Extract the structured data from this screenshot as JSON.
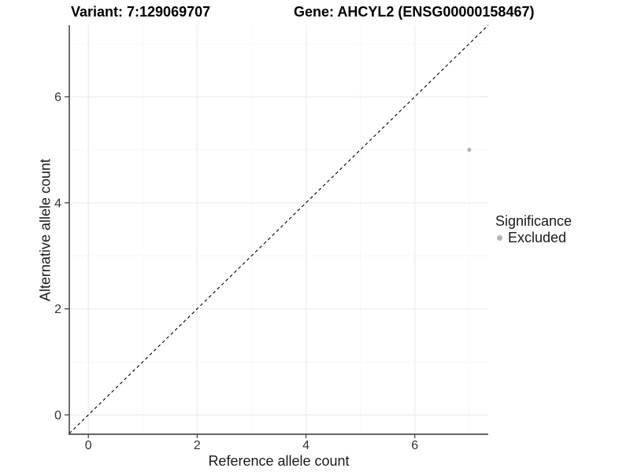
{
  "header": {
    "variant_title": "Variant: 7:129069707",
    "gene_title": "Gene: AHCYL2 (ENSG00000158467)"
  },
  "chart_data": {
    "type": "scatter",
    "xlabel": "Reference allele count",
    "ylabel": "Alternative allele count",
    "xlim": [
      -0.35,
      7.35
    ],
    "ylim": [
      -0.35,
      7.35
    ],
    "x_ticks": [
      0,
      2,
      4,
      6
    ],
    "y_ticks": [
      0,
      2,
      4,
      6
    ],
    "x_minor_ticks": [
      1,
      3,
      5,
      7
    ],
    "y_minor_ticks": [
      1,
      3,
      5,
      7
    ],
    "grid": true,
    "series": [
      {
        "name": "Excluded",
        "color": "#b3b3b3",
        "points": [
          {
            "x": 7,
            "y": 5
          }
        ]
      }
    ],
    "reference_line": {
      "type": "identity",
      "style": "dashed",
      "color": "#000000"
    },
    "legend": {
      "title": "Significance",
      "position": "right",
      "items": [
        {
          "label": "Excluded",
          "color": "#b3b3b3"
        }
      ]
    }
  },
  "colors": {
    "background": "#ffffff",
    "grid_major": "#ebebeb",
    "grid_minor": "#f5f5f5",
    "axis_line": "#333333",
    "tick_text": "#333333",
    "point": "#b3b3b3"
  }
}
